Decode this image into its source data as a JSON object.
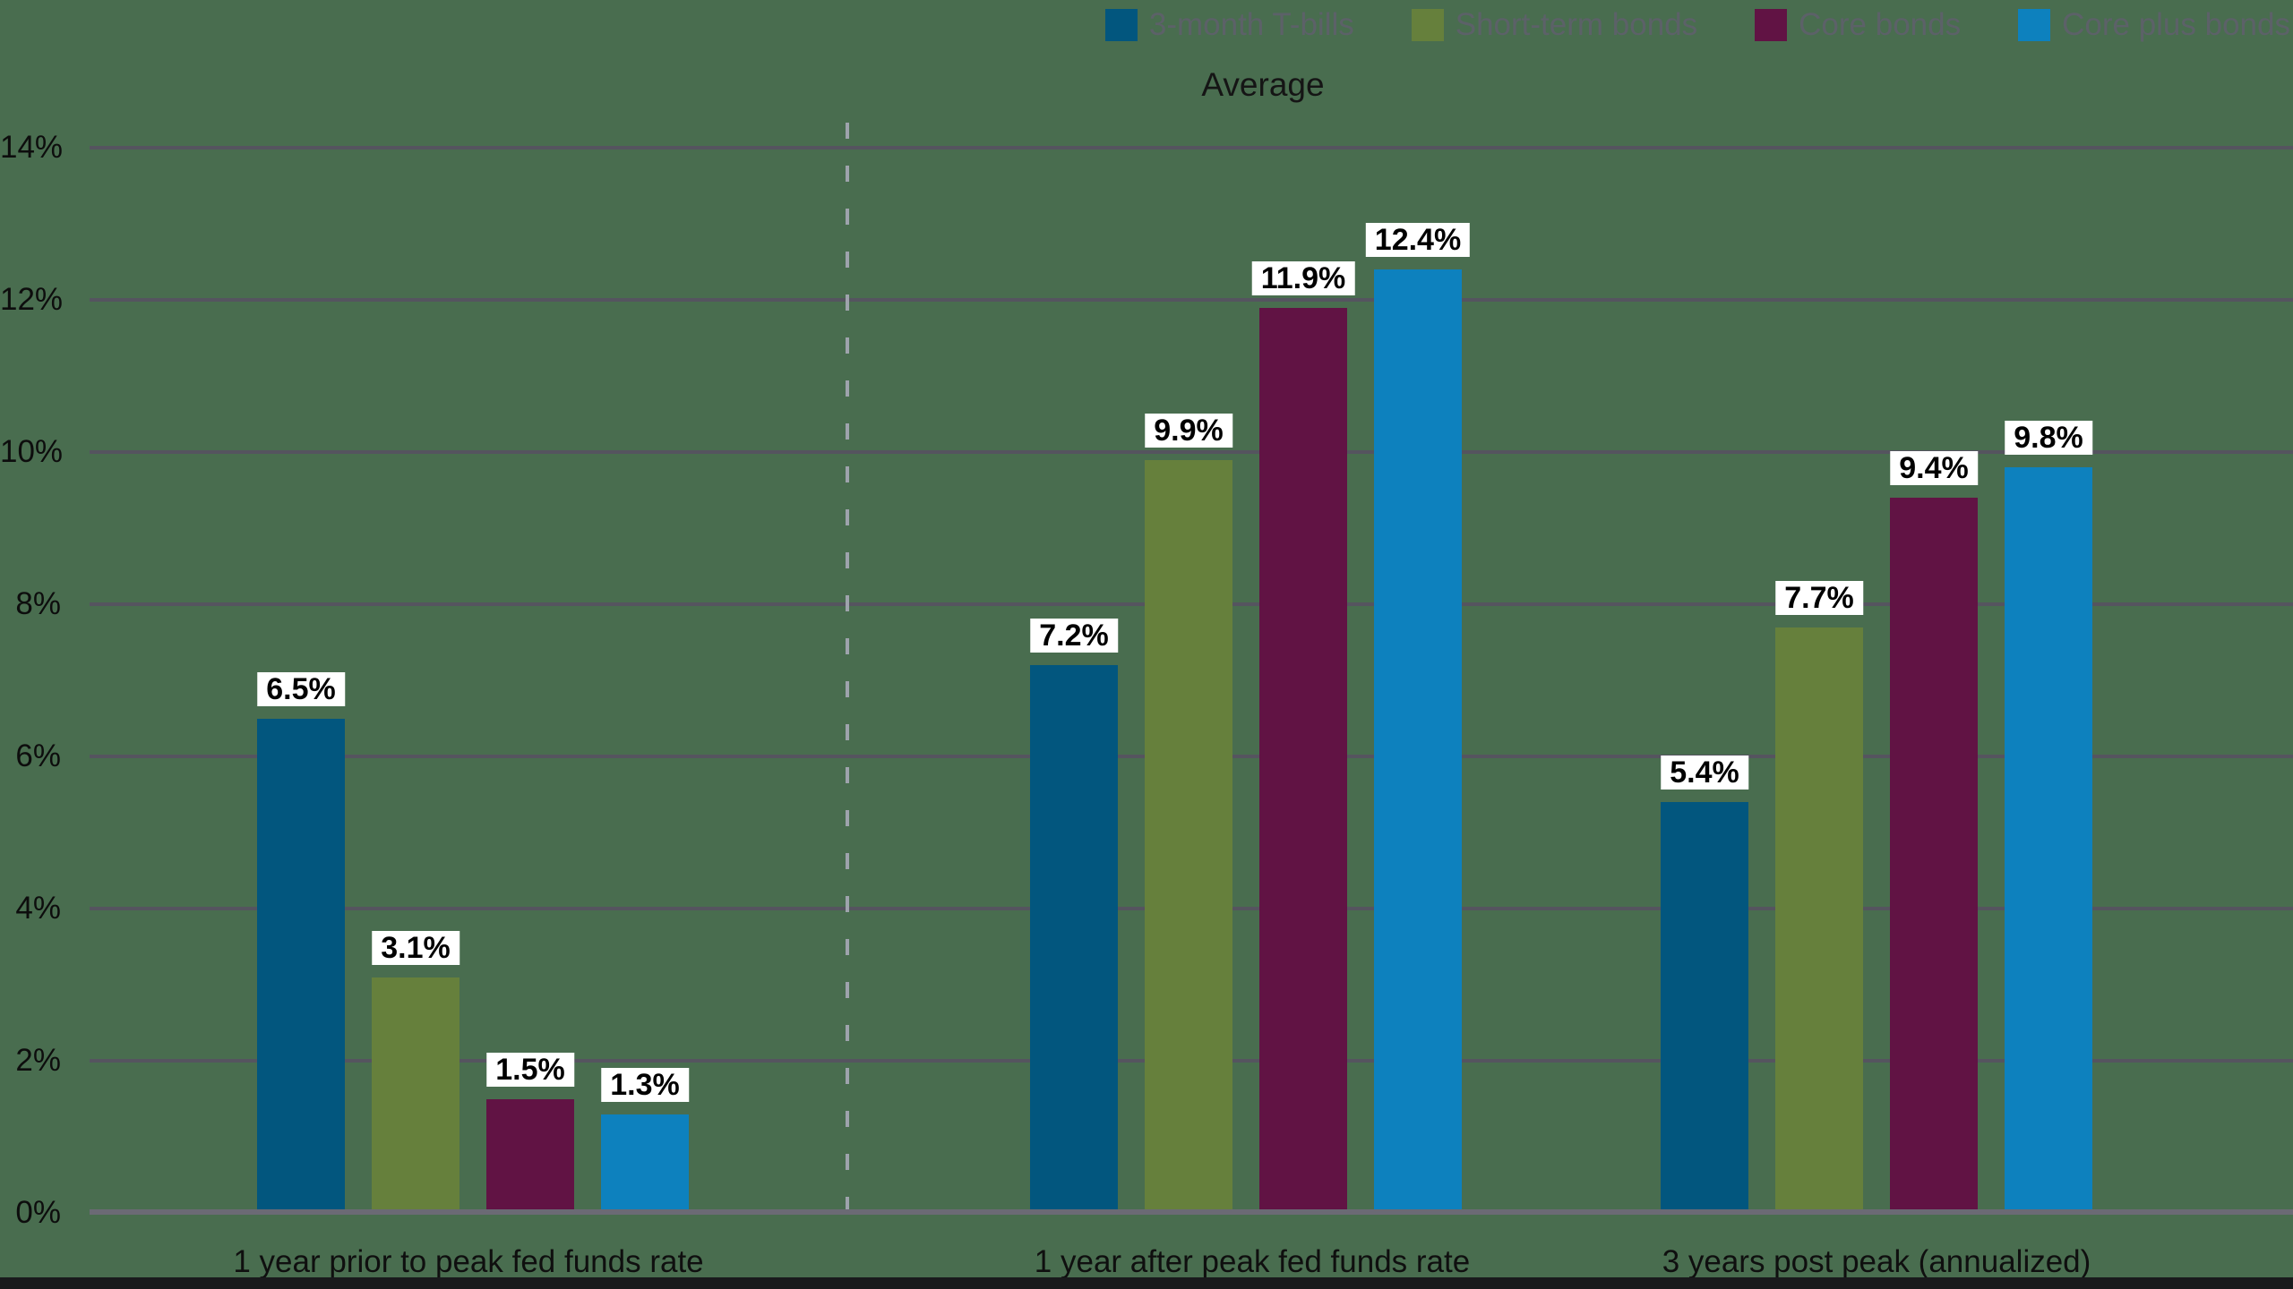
{
  "chart_data": {
    "type": "bar",
    "title": "Average",
    "categories": [
      "1 year prior to peak fed funds rate",
      "1 year after peak fed funds rate",
      "3 years post peak (annualized)"
    ],
    "series": [
      {
        "name": "3-month T-bills",
        "color": "#02567E",
        "values": [
          6.5,
          7.2,
          5.4
        ],
        "value_labels": [
          "6.5%",
          "7.2%",
          "5.4%"
        ]
      },
      {
        "name": "Short-term bonds",
        "color": "#66803C",
        "values": [
          3.1,
          9.9,
          7.7
        ],
        "value_labels": [
          "3.1%",
          "9.9%",
          "7.7%"
        ]
      },
      {
        "name": "Core bonds",
        "color": "#611344",
        "values": [
          1.5,
          11.9,
          9.4
        ],
        "value_labels": [
          "1.5%",
          "11.9%",
          "9.4%"
        ]
      },
      {
        "name": "Core plus bonds",
        "color": "#0D81BE",
        "values": [
          1.3,
          12.4,
          9.8
        ],
        "value_labels": [
          "1.3%",
          "12.4%",
          "9.8%"
        ]
      }
    ],
    "y_axis": {
      "tick_values": [
        0,
        2,
        4,
        6,
        8,
        10,
        12,
        14
      ],
      "tick_labels": [
        "0%",
        "2%",
        "4%",
        "6%",
        "8%",
        "10%",
        "12%",
        "14%"
      ]
    },
    "ylim": [
      0,
      14
    ],
    "grid": true,
    "legend_position": "top-right",
    "divider_after_category_index": 0,
    "style": {
      "background": "#496D4F",
      "gridline_color": "#55545F",
      "axis_line_color": "#6B6A75",
      "divider_color": "#9EA3AC",
      "legend_text_color": "#5C6168",
      "value_label_bg": "#FFFFFF",
      "value_label_text": "#000000",
      "tick_text_color": "#0D0D0D"
    }
  }
}
